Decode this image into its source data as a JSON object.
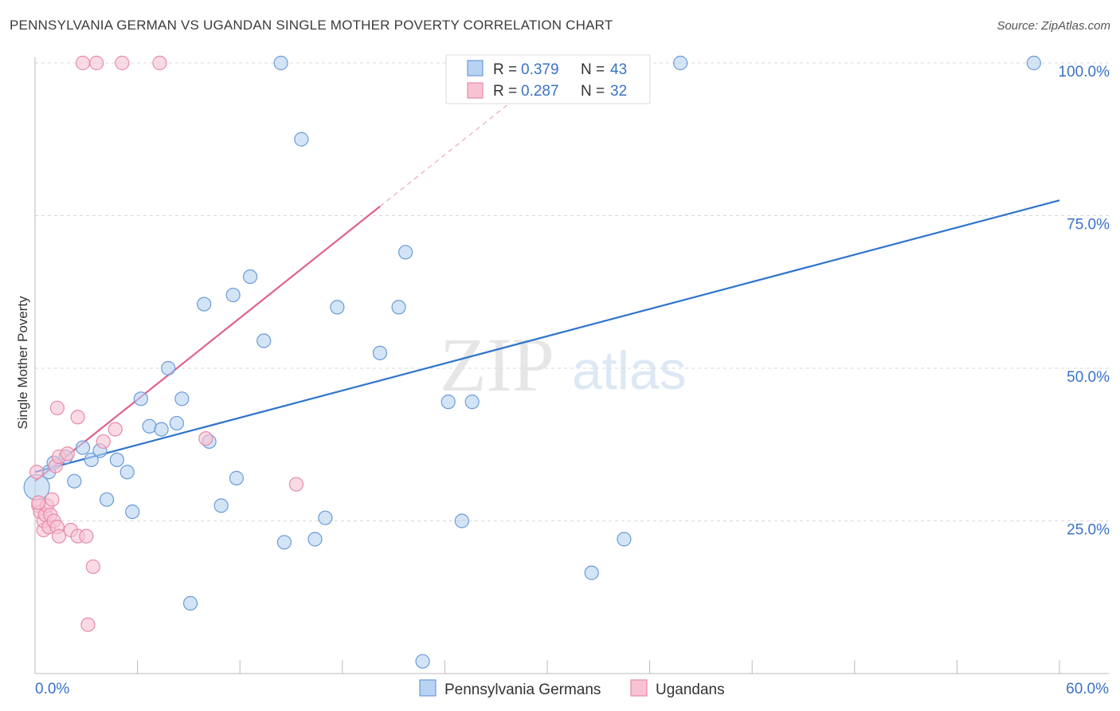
{
  "header": {
    "title": "PENNSYLVANIA GERMAN VS UGANDAN SINGLE MOTHER POVERTY CORRELATION CHART",
    "source": "Source: ZipAtlas.com"
  },
  "watermark": {
    "zip": "ZIP",
    "atlas": "atlas"
  },
  "colors": {
    "blue_fill": "#b8d2f2",
    "blue_stroke": "#6a9bd8",
    "blue_line": "#2f74cc",
    "pink_fill": "#f7c3d3",
    "pink_stroke": "#e88aa8",
    "pink_line": "#e0608a",
    "accent_text": "#3a72c8",
    "grid": "#d9d9d9"
  },
  "chart_data": {
    "type": "scatter",
    "title": "PENNSYLVANIA GERMAN VS UGANDAN SINGLE MOTHER POVERTY CORRELATION CHART",
    "xlabel": "",
    "ylabel": "Single Mother Poverty",
    "xlim": [
      0,
      60
    ],
    "ylim": [
      0,
      100
    ],
    "x_tick_labels": [
      "0.0%",
      "60.0%"
    ],
    "y_ticks": [
      {
        "value": 25,
        "label": "25.0%"
      },
      {
        "value": 50,
        "label": "50.0%"
      },
      {
        "value": 75,
        "label": "75.0%"
      },
      {
        "value": 100,
        "label": "100.0%"
      }
    ],
    "x_minor_ticks": [
      0,
      6,
      12,
      18,
      24,
      30,
      36,
      42,
      48,
      54,
      60
    ],
    "grid": true,
    "legend_position": "top-center",
    "legend": [
      {
        "r_label": "R =",
        "r_value": "0.379",
        "n_label": "N =",
        "n_value": "43"
      },
      {
        "r_label": "R =",
        "r_value": "0.287",
        "n_label": "N =",
        "n_value": "32"
      }
    ],
    "series": [
      {
        "name": "Pennsylvania Germans",
        "color": "blue",
        "trend": {
          "x0": 0.0,
          "y0": 33.0,
          "x1": 60.0,
          "y1": 77.5,
          "dashed_extension": false
        },
        "points": [
          {
            "x": 0.1,
            "y": 30.5,
            "big": true
          },
          {
            "x": 0.8,
            "y": 33.0
          },
          {
            "x": 1.1,
            "y": 34.5
          },
          {
            "x": 1.8,
            "y": 35.5
          },
          {
            "x": 2.3,
            "y": 31.5
          },
          {
            "x": 2.8,
            "y": 37.0
          },
          {
            "x": 3.3,
            "y": 35.0
          },
          {
            "x": 3.8,
            "y": 36.5
          },
          {
            "x": 4.2,
            "y": 28.5
          },
          {
            "x": 4.8,
            "y": 35.0
          },
          {
            "x": 5.4,
            "y": 33.0
          },
          {
            "x": 5.7,
            "y": 26.5
          },
          {
            "x": 6.2,
            "y": 45.0
          },
          {
            "x": 6.7,
            "y": 40.5
          },
          {
            "x": 7.4,
            "y": 40.0
          },
          {
            "x": 7.8,
            "y": 50.0
          },
          {
            "x": 8.3,
            "y": 41.0
          },
          {
            "x": 8.6,
            "y": 45.0
          },
          {
            "x": 9.1,
            "y": 11.5
          },
          {
            "x": 9.9,
            "y": 60.5
          },
          {
            "x": 10.2,
            "y": 38.0
          },
          {
            "x": 10.9,
            "y": 27.5
          },
          {
            "x": 11.6,
            "y": 62.0
          },
          {
            "x": 11.8,
            "y": 32.0
          },
          {
            "x": 12.6,
            "y": 65.0
          },
          {
            "x": 13.4,
            "y": 54.5
          },
          {
            "x": 14.4,
            "y": 100.0
          },
          {
            "x": 14.6,
            "y": 21.5
          },
          {
            "x": 15.6,
            "y": 87.5
          },
          {
            "x": 16.4,
            "y": 22.0
          },
          {
            "x": 17.0,
            "y": 25.5
          },
          {
            "x": 17.7,
            "y": 60.0
          },
          {
            "x": 20.2,
            "y": 52.5
          },
          {
            "x": 21.3,
            "y": 60.0
          },
          {
            "x": 21.7,
            "y": 69.0
          },
          {
            "x": 22.7,
            "y": 2.0
          },
          {
            "x": 24.2,
            "y": 44.5
          },
          {
            "x": 25.0,
            "y": 25.0
          },
          {
            "x": 25.6,
            "y": 44.5
          },
          {
            "x": 32.6,
            "y": 16.5
          },
          {
            "x": 34.5,
            "y": 22.0
          },
          {
            "x": 37.8,
            "y": 100.0
          },
          {
            "x": 58.5,
            "y": 100.0
          }
        ]
      },
      {
        "name": "Ugandans",
        "color": "pink",
        "trend": {
          "x0": 0.0,
          "y0": 31.5,
          "x1": 20.2,
          "y1": 76.5,
          "dashed_to_x": 28.5,
          "dashed_to_y": 95.0
        },
        "points": [
          {
            "x": 0.1,
            "y": 33.0
          },
          {
            "x": 0.2,
            "y": 27.5
          },
          {
            "x": 0.3,
            "y": 26.5
          },
          {
            "x": 0.5,
            "y": 23.5
          },
          {
            "x": 0.5,
            "y": 25.0
          },
          {
            "x": 0.6,
            "y": 26.0
          },
          {
            "x": 0.7,
            "y": 27.5
          },
          {
            "x": 0.8,
            "y": 24.0
          },
          {
            "x": 0.9,
            "y": 26.0
          },
          {
            "x": 1.0,
            "y": 28.5
          },
          {
            "x": 1.1,
            "y": 25.0
          },
          {
            "x": 1.2,
            "y": 34.0
          },
          {
            "x": 1.3,
            "y": 24.0
          },
          {
            "x": 1.3,
            "y": 43.5
          },
          {
            "x": 1.4,
            "y": 35.5
          },
          {
            "x": 1.4,
            "y": 22.5
          },
          {
            "x": 2.1,
            "y": 23.5
          },
          {
            "x": 2.5,
            "y": 22.5
          },
          {
            "x": 2.5,
            "y": 42.0
          },
          {
            "x": 2.8,
            "y": 100.0
          },
          {
            "x": 3.0,
            "y": 22.5
          },
          {
            "x": 3.1,
            "y": 8.0
          },
          {
            "x": 3.4,
            "y": 17.5
          },
          {
            "x": 3.6,
            "y": 100.0
          },
          {
            "x": 4.0,
            "y": 38.0
          },
          {
            "x": 4.7,
            "y": 40.0
          },
          {
            "x": 5.1,
            "y": 100.0
          },
          {
            "x": 7.3,
            "y": 100.0
          },
          {
            "x": 10.0,
            "y": 38.5
          },
          {
            "x": 15.3,
            "y": 31.0
          },
          {
            "x": 0.2,
            "y": 28.0
          },
          {
            "x": 1.9,
            "y": 36.0
          }
        ]
      }
    ]
  }
}
